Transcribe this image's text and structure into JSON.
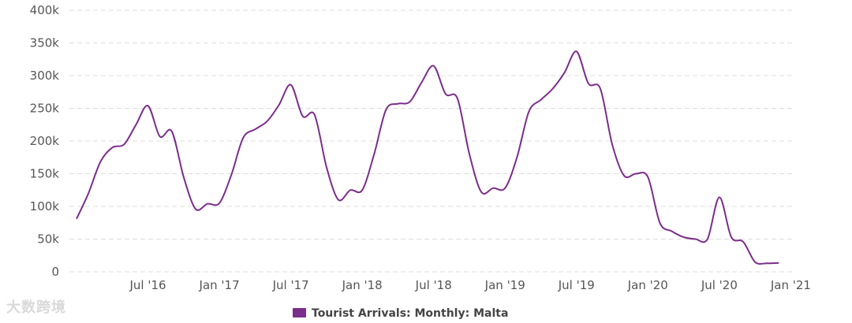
{
  "chart_data": {
    "type": "line",
    "title": "",
    "xlabel": "",
    "ylabel": "",
    "ylim": [
      0,
      400000
    ],
    "y_ticks": [
      0,
      50000,
      100000,
      150000,
      200000,
      250000,
      300000,
      350000,
      400000
    ],
    "y_tick_labels": [
      "0",
      "50k",
      "100k",
      "150k",
      "200k",
      "250k",
      "300k",
      "350k",
      "400k"
    ],
    "x_ticks": [
      "2016-07",
      "2017-01",
      "2017-07",
      "2018-01",
      "2018-07",
      "2019-01",
      "2019-07",
      "2020-01",
      "2020-07",
      "2021-01"
    ],
    "x_tick_labels": [
      "Jul '16",
      "Jan '17",
      "Jul '17",
      "Jan '18",
      "Jul '18",
      "Jan '19",
      "Jul '19",
      "Jan '20",
      "Jul '20",
      "Jan '21"
    ],
    "grid": true,
    "legend_position": "bottom-center",
    "series": [
      {
        "name": "Tourist Arrivals: Monthly: Malta",
        "color": "#7b2d8b",
        "points": [
          [
            "2016-01",
            81000
          ],
          [
            "2016-02",
            120000
          ],
          [
            "2016-03",
            168000
          ],
          [
            "2016-04",
            190000
          ],
          [
            "2016-05",
            195000
          ],
          [
            "2016-06",
            225000
          ],
          [
            "2016-07",
            254000
          ],
          [
            "2016-08",
            207000
          ],
          [
            "2016-09",
            215000
          ],
          [
            "2016-10",
            145000
          ],
          [
            "2016-11",
            96000
          ],
          [
            "2016-12",
            104000
          ],
          [
            "2017-01",
            105000
          ],
          [
            "2017-02",
            148000
          ],
          [
            "2017-03",
            205000
          ],
          [
            "2017-04",
            218000
          ],
          [
            "2017-05",
            230000
          ],
          [
            "2017-06",
            255000
          ],
          [
            "2017-07",
            286000
          ],
          [
            "2017-08",
            238000
          ],
          [
            "2017-09",
            240000
          ],
          [
            "2017-10",
            160000
          ],
          [
            "2017-11",
            110000
          ],
          [
            "2017-12",
            125000
          ],
          [
            "2018-01",
            125000
          ],
          [
            "2018-02",
            180000
          ],
          [
            "2018-03",
            248000
          ],
          [
            "2018-04",
            257000
          ],
          [
            "2018-05",
            260000
          ],
          [
            "2018-06",
            290000
          ],
          [
            "2018-07",
            315000
          ],
          [
            "2018-08",
            272000
          ],
          [
            "2018-09",
            265000
          ],
          [
            "2018-10",
            180000
          ],
          [
            "2018-11",
            122000
          ],
          [
            "2018-12",
            128000
          ],
          [
            "2019-01",
            128000
          ],
          [
            "2019-02",
            175000
          ],
          [
            "2019-03",
            245000
          ],
          [
            "2019-04",
            263000
          ],
          [
            "2019-05",
            280000
          ],
          [
            "2019-06",
            305000
          ],
          [
            "2019-07",
            337000
          ],
          [
            "2019-08",
            288000
          ],
          [
            "2019-09",
            280000
          ],
          [
            "2019-10",
            195000
          ],
          [
            "2019-11",
            147000
          ],
          [
            "2019-12",
            150000
          ],
          [
            "2020-01",
            145000
          ],
          [
            "2020-02",
            75000
          ],
          [
            "2020-03",
            62000
          ],
          [
            "2020-04",
            53000
          ],
          [
            "2020-05",
            50000
          ],
          [
            "2020-06",
            50000
          ],
          [
            "2020-07",
            114000
          ],
          [
            "2020-08",
            53000
          ],
          [
            "2020-09",
            46000
          ],
          [
            "2020-10",
            15000
          ],
          [
            "2020-11",
            13000
          ],
          [
            "2020-12",
            13500
          ]
        ]
      }
    ]
  },
  "legend": {
    "label": "Tourist Arrivals: Monthly: Malta",
    "swatch_color": "#7b2d8b"
  },
  "watermark": {
    "text": "大数跨境"
  }
}
